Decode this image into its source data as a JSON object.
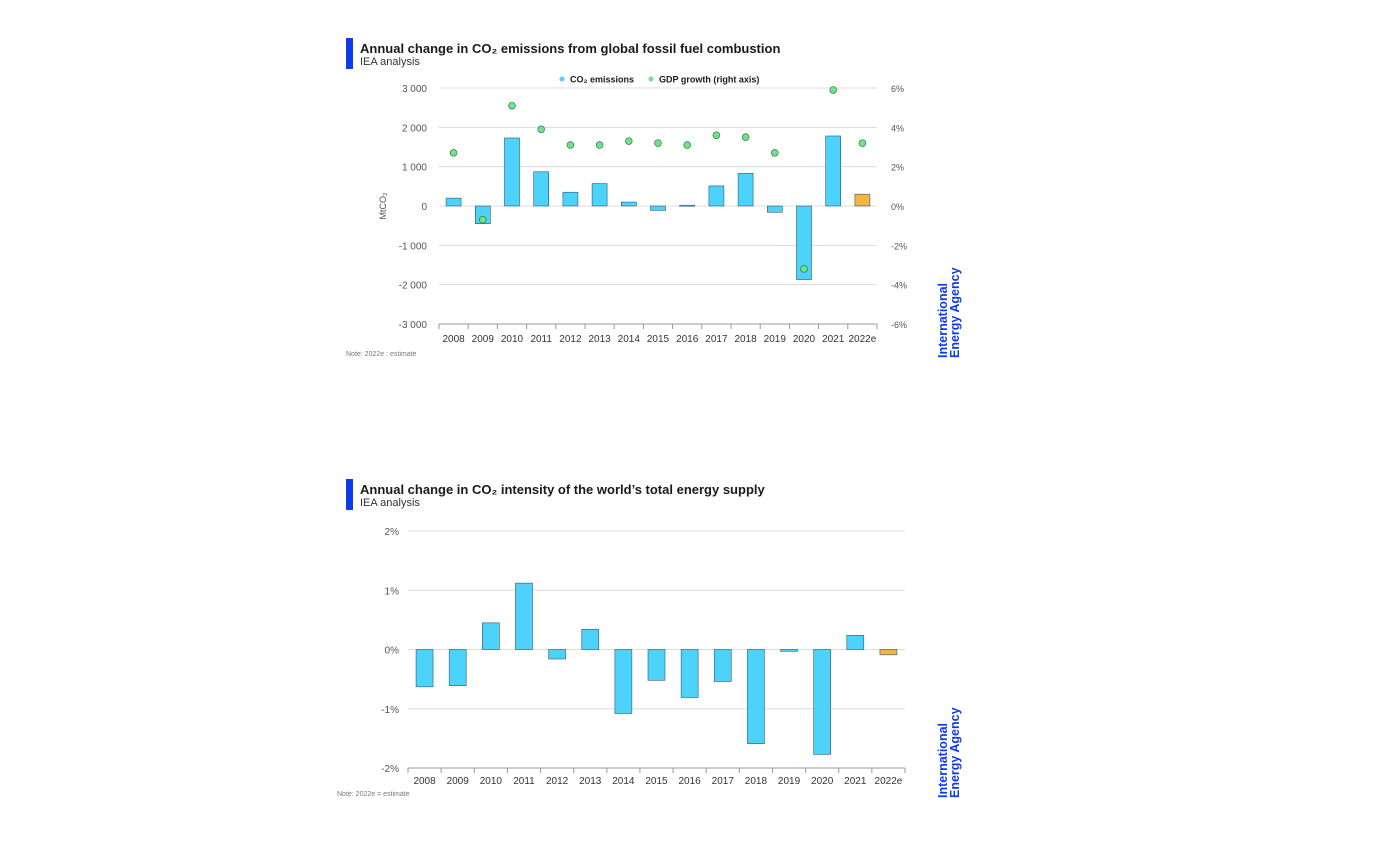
{
  "charts": {
    "co2_emissions": {
      "title": "Annual change in CO₂ emissions from global fossil fuel combustion",
      "subtitle": "IEA analysis",
      "note": "Note: 2022e : estimate",
      "ylabel": "MtCO₂",
      "legend": {
        "series1": "CO₂ emissions",
        "series2": "GDP growth (right axis)"
      },
      "left_ticks": [
        "3 000",
        "2 000",
        "1 000",
        "0",
        "-1 000",
        "-2 000",
        "-3 000"
      ],
      "right_ticks": [
        "6%",
        "4%",
        "2%",
        "0%",
        "-2%",
        "-4%",
        "-6%"
      ]
    },
    "co2_intensity": {
      "title": "Annual change in CO₂ intensity of the world’s total energy supply",
      "subtitle": "IEA analysis",
      "note": "Note: 2022e = estimate",
      "left_ticks": [
        "2%",
        "1%",
        "0%",
        "-1%",
        "-2%"
      ]
    }
  },
  "logo": {
    "line1": "International",
    "line2": "Energy Agency"
  },
  "colors": {
    "bar": "#4dd2fb",
    "estimate": "#f9b340",
    "gdp_dot": "#6fe28c",
    "brand": "#0e3be8"
  },
  "chart_data": [
    {
      "type": "bar",
      "title": "Annual change in CO₂ emissions from global fossil fuel combustion",
      "subtitle": "IEA analysis",
      "ylabel": "MtCO₂",
      "ylim": [
        -3000,
        3000
      ],
      "y2lim": [
        -6,
        6
      ],
      "categories": [
        "2008",
        "2009",
        "2010",
        "2011",
        "2012",
        "2013",
        "2014",
        "2015",
        "2016",
        "2017",
        "2018",
        "2019",
        "2020",
        "2021",
        "2022e"
      ],
      "series": [
        {
          "name": "CO₂ emissions",
          "values": [
            200,
            -450,
            1730,
            870,
            350,
            570,
            100,
            -110,
            20,
            510,
            830,
            -160,
            -1870,
            1780,
            300
          ]
        },
        {
          "name": "GDP growth (right axis)",
          "axis": "right",
          "type": "scatter",
          "values": [
            2.7,
            -0.7,
            5.1,
            3.9,
            3.1,
            3.1,
            3.3,
            3.2,
            3.1,
            3.6,
            3.5,
            2.7,
            -3.2,
            5.9,
            3.2
          ]
        }
      ],
      "grid": true,
      "legend": "top"
    },
    {
      "type": "bar",
      "title": "Annual change in CO₂ intensity of the world’s total energy supply",
      "subtitle": "IEA analysis",
      "ylim": [
        -2,
        2
      ],
      "categories": [
        "2008",
        "2009",
        "2010",
        "2011",
        "2012",
        "2013",
        "2014",
        "2015",
        "2016",
        "2017",
        "2018",
        "2019",
        "2020",
        "2021",
        "2022e"
      ],
      "values": [
        -0.63,
        -0.61,
        0.45,
        1.12,
        -0.16,
        0.34,
        -1.08,
        -0.52,
        -0.81,
        -0.54,
        -1.59,
        -0.03,
        -1.77,
        0.24,
        -0.09
      ],
      "grid": true
    }
  ]
}
